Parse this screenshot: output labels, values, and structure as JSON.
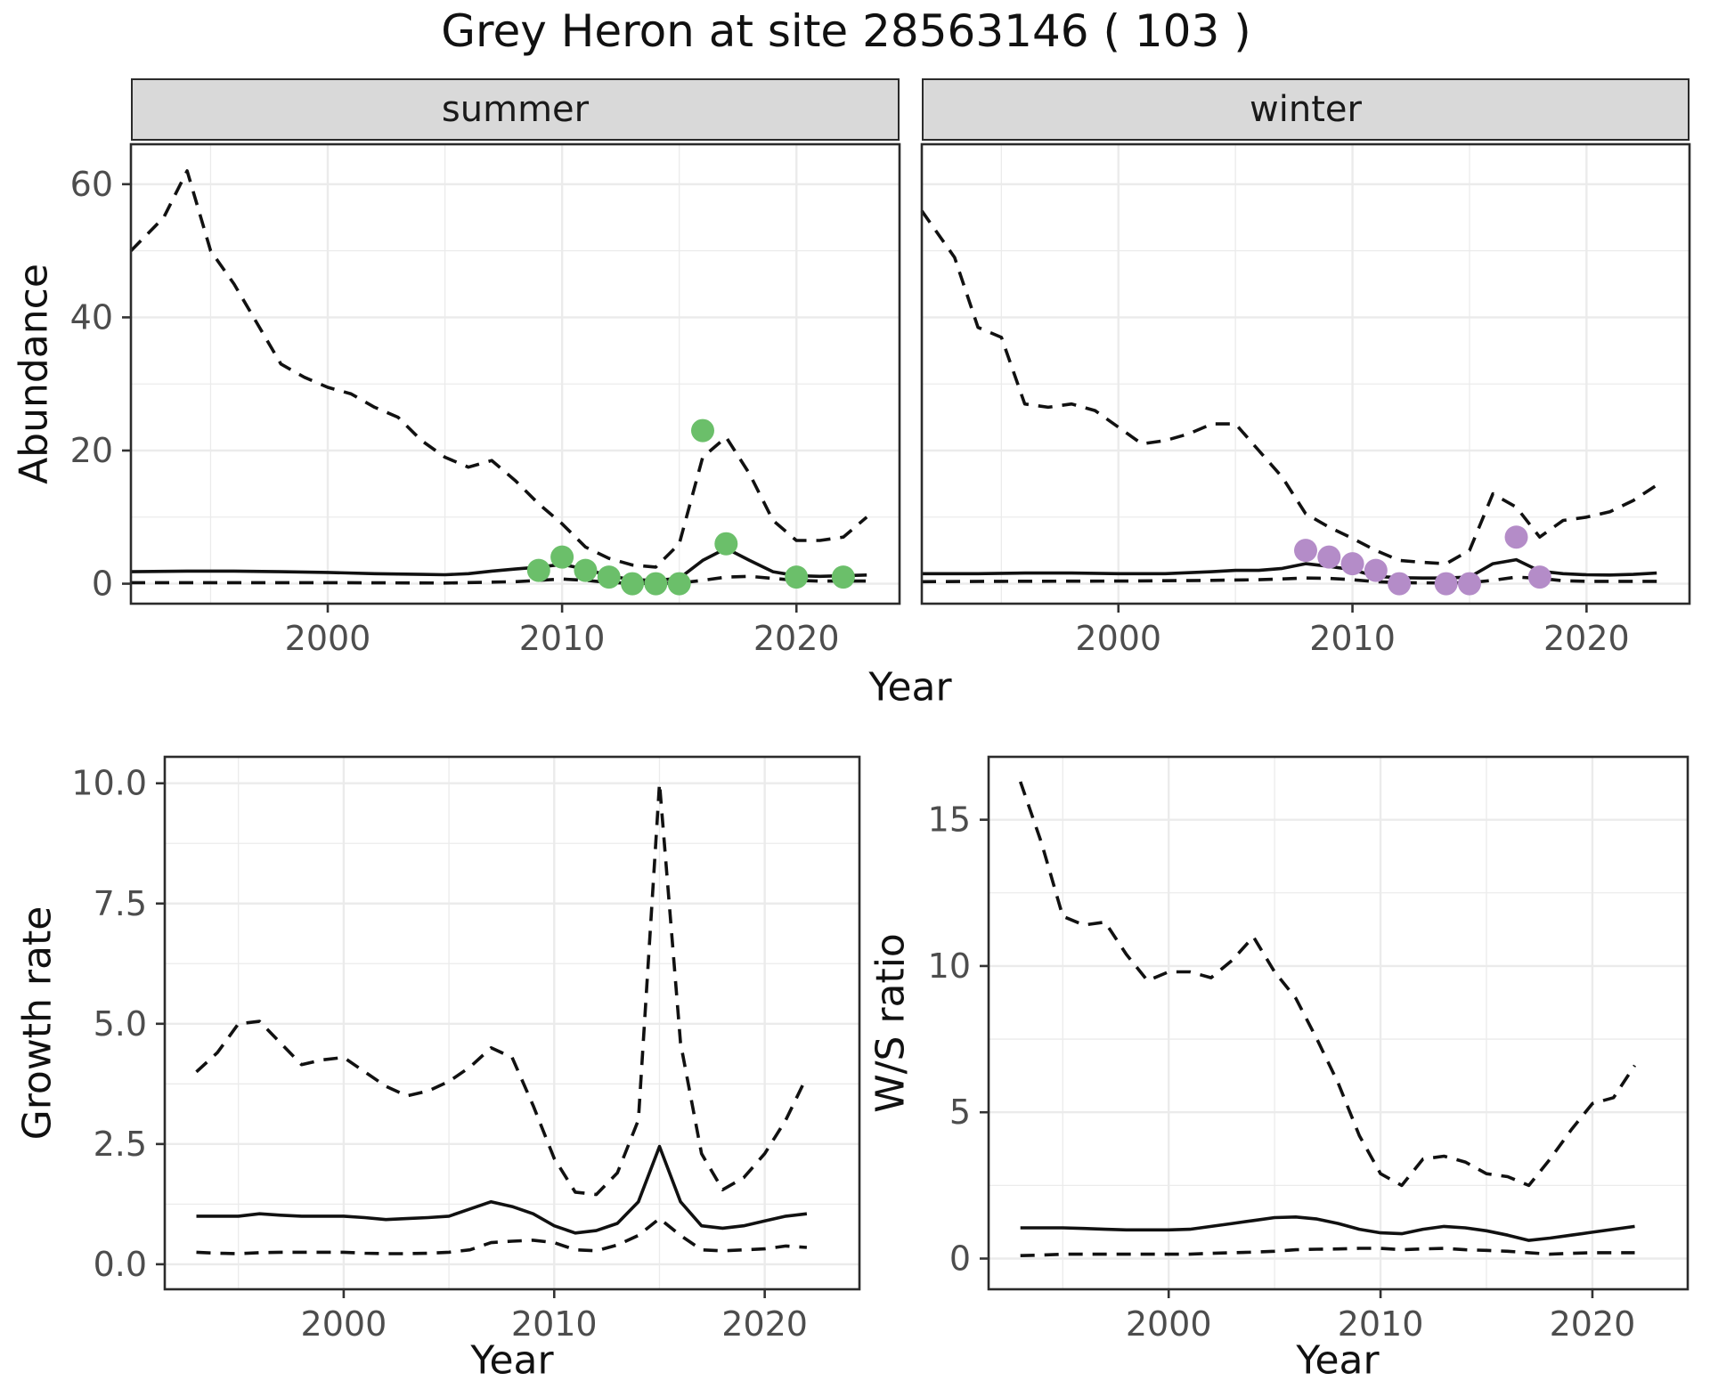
{
  "title": "Grey Heron at site 28563146 ( 103 )",
  "labels": {
    "year": "Year"
  },
  "colors": {
    "summer_points": "#6BBF6A",
    "winter_points": "#B48CC8",
    "line": "#111111",
    "grid": "#EBEBEB",
    "panel_border": "#2B2B2B",
    "strip_bg": "#D9D9D9",
    "axis_text": "#4D4D4D"
  },
  "chart_data": [
    {
      "id": "abundance_summer",
      "type": "line",
      "facet": "summer",
      "xlabel": "Year",
      "ylabel": "Abundance",
      "x_range": [
        1991.6,
        2024.4
      ],
      "y_range": [
        -3,
        66
      ],
      "x_ticks": [
        2000,
        2010,
        2020
      ],
      "x_tick_labels": [
        "2000",
        "2010",
        "2020"
      ],
      "y_ticks": [
        0,
        20,
        40,
        60
      ],
      "y_tick_labels": [
        "0",
        "20",
        "40",
        "60"
      ],
      "show_y_axis": true,
      "grid": true,
      "series": [
        {
          "name": "upper_ci",
          "style": "dashed",
          "x": [
            1991.6,
            1993,
            1994,
            1995,
            1996,
            1997,
            1998,
            1999,
            2000,
            2001,
            2002,
            2003,
            2004,
            2005,
            2006,
            2007,
            2008,
            2009,
            2010,
            2011,
            2012,
            2013,
            2014,
            2015,
            2016,
            2017,
            2018,
            2019,
            2020,
            2021,
            2022,
            2023
          ],
          "y": [
            50,
            55,
            62,
            50,
            45,
            39,
            33,
            31,
            29.5,
            28.5,
            26.5,
            25,
            21.5,
            19,
            17.5,
            18.5,
            15.5,
            12,
            9,
            5.5,
            3.8,
            2.8,
            2.5,
            6,
            19,
            22,
            16.5,
            9.5,
            6.5,
            6.5,
            7,
            10
          ]
        },
        {
          "name": "estimate",
          "style": "solid",
          "x": [
            1991.6,
            1994,
            1996,
            1998,
            2000,
            2002,
            2004,
            2005,
            2006,
            2007,
            2008,
            2009,
            2010,
            2011,
            2012,
            2013,
            2014,
            2015,
            2016,
            2017,
            2018,
            2019,
            2020,
            2021,
            2022,
            2023
          ],
          "y": [
            1.8,
            1.9,
            1.9,
            1.8,
            1.7,
            1.5,
            1.4,
            1.35,
            1.5,
            1.9,
            2.2,
            2.5,
            2.9,
            2.2,
            1.2,
            0.6,
            0.5,
            0.8,
            3.5,
            5.3,
            3.5,
            1.8,
            1.2,
            1.1,
            1.2,
            1.3
          ]
        },
        {
          "name": "lower_ci",
          "style": "dashed",
          "x": [
            1991.6,
            1995,
            2000,
            2005,
            2008,
            2009,
            2010,
            2011,
            2012,
            2013,
            2014,
            2015,
            2016,
            2017,
            2018,
            2019,
            2020,
            2021,
            2022,
            2023
          ],
          "y": [
            0.15,
            0.15,
            0.15,
            0.1,
            0.3,
            0.5,
            0.7,
            0.5,
            0.2,
            0.05,
            0.05,
            0.1,
            0.5,
            1.0,
            1.1,
            0.8,
            0.5,
            0.4,
            0.4,
            0.4
          ]
        }
      ],
      "points": {
        "name": "observed_counts",
        "color": "#6BBF6A",
        "x": [
          2009,
          2010,
          2011,
          2012,
          2013,
          2014,
          2015,
          2016,
          2017,
          2020,
          2022
        ],
        "y": [
          2,
          4,
          2,
          1,
          0,
          0,
          0,
          23,
          6,
          1,
          1
        ]
      }
    },
    {
      "id": "abundance_winter",
      "type": "line",
      "facet": "winter",
      "xlabel": "Year",
      "ylabel": "Abundance",
      "x_range": [
        1991.6,
        2024.4
      ],
      "y_range": [
        -3,
        66
      ],
      "x_ticks": [
        2000,
        2010,
        2020
      ],
      "x_tick_labels": [
        "2000",
        "2010",
        "2020"
      ],
      "y_ticks": [
        0,
        20,
        40,
        60
      ],
      "y_tick_labels": [
        "0",
        "20",
        "40",
        "60"
      ],
      "show_y_axis": false,
      "grid": true,
      "series": [
        {
          "name": "upper_ci",
          "style": "dashed",
          "x": [
            1991.6,
            1993,
            1994,
            1995,
            1996,
            1997,
            1998,
            1999,
            2000,
            2001,
            2002,
            2003,
            2004,
            2005,
            2006,
            2007,
            2008,
            2009,
            2010,
            2011,
            2012,
            2013,
            2014,
            2015,
            2016,
            2017,
            2018,
            2019,
            2020,
            2021,
            2022,
            2023
          ],
          "y": [
            56,
            49,
            38.5,
            37,
            27,
            26.5,
            27,
            26,
            23.5,
            21,
            21.5,
            22.5,
            24,
            24,
            20,
            16,
            10.5,
            8.5,
            6.8,
            5,
            3.5,
            3.2,
            3,
            5,
            13.5,
            11.5,
            7,
            9.5,
            10,
            10.8,
            12.5,
            14.8
          ]
        },
        {
          "name": "estimate",
          "style": "solid",
          "x": [
            1991.6,
            1994,
            1996,
            1998,
            2000,
            2002,
            2004,
            2005,
            2006,
            2007,
            2008,
            2009,
            2010,
            2011,
            2012,
            2013,
            2014,
            2015,
            2016,
            2017,
            2018,
            2019,
            2020,
            2021,
            2022,
            2023
          ],
          "y": [
            1.5,
            1.5,
            1.6,
            1.6,
            1.5,
            1.5,
            1.8,
            2.0,
            2.0,
            2.3,
            3.0,
            2.6,
            2.1,
            1.1,
            0.9,
            0.85,
            0.85,
            1.0,
            3.0,
            3.6,
            1.9,
            1.5,
            1.35,
            1.3,
            1.4,
            1.6
          ]
        },
        {
          "name": "lower_ci",
          "style": "dashed",
          "x": [
            1991.6,
            1995,
            2000,
            2004,
            2006,
            2008,
            2009,
            2010,
            2011,
            2012,
            2014,
            2015,
            2016,
            2017,
            2018,
            2019,
            2020,
            2021,
            2022,
            2023
          ],
          "y": [
            0.3,
            0.35,
            0.4,
            0.5,
            0.6,
            0.85,
            0.8,
            0.6,
            0.3,
            0.15,
            0.1,
            0.15,
            0.5,
            1.0,
            0.8,
            0.45,
            0.35,
            0.35,
            0.35,
            0.35
          ]
        }
      ],
      "points": {
        "name": "observed_counts",
        "color": "#B48CC8",
        "x": [
          2008,
          2009,
          2010,
          2011,
          2012,
          2014,
          2015,
          2017,
          2018
        ],
        "y": [
          5,
          4,
          3,
          2,
          0,
          0,
          0,
          7,
          1
        ]
      }
    },
    {
      "id": "growth_rate",
      "type": "line",
      "facet": null,
      "xlabel": "Year",
      "ylabel": "Growth rate",
      "x_range": [
        1991.5,
        2024.5
      ],
      "y_range": [
        -0.52,
        10.55
      ],
      "x_ticks": [
        2000,
        2010,
        2020
      ],
      "x_tick_labels": [
        "2000",
        "2010",
        "2020"
      ],
      "y_ticks": [
        0,
        2.5,
        5,
        7.5,
        10
      ],
      "y_tick_labels": [
        "0.0",
        "2.5",
        "5.0",
        "7.5",
        "10.0"
      ],
      "show_y_axis": true,
      "grid": true,
      "series": [
        {
          "name": "upper_ci",
          "style": "dashed",
          "x": [
            1993,
            1994,
            1995,
            1996,
            1997,
            1998,
            1999,
            2000,
            2001,
            2002,
            2003,
            2004,
            2005,
            2006,
            2007,
            2008,
            2009,
            2010,
            2011,
            2012,
            2013,
            2014,
            2015,
            2016,
            2017,
            2018,
            2019,
            2020,
            2021,
            2022
          ],
          "y": [
            4.0,
            4.4,
            5.0,
            5.05,
            4.6,
            4.15,
            4.25,
            4.3,
            4.0,
            3.7,
            3.5,
            3.6,
            3.8,
            4.1,
            4.5,
            4.3,
            3.3,
            2.2,
            1.5,
            1.45,
            1.9,
            3.0,
            10.0,
            4.6,
            2.3,
            1.55,
            1.8,
            2.3,
            3.0,
            3.9
          ]
        },
        {
          "name": "estimate",
          "style": "solid",
          "x": [
            1993,
            1994,
            1995,
            1996,
            1997,
            1998,
            1999,
            2000,
            2001,
            2002,
            2003,
            2004,
            2005,
            2006,
            2007,
            2008,
            2009,
            2010,
            2011,
            2012,
            2013,
            2014,
            2015,
            2016,
            2017,
            2018,
            2019,
            2020,
            2021,
            2022
          ],
          "y": [
            1.0,
            1.0,
            1.0,
            1.05,
            1.02,
            1.0,
            1.0,
            1.0,
            0.97,
            0.93,
            0.95,
            0.97,
            1.0,
            1.15,
            1.3,
            1.2,
            1.05,
            0.8,
            0.65,
            0.7,
            0.85,
            1.3,
            2.45,
            1.3,
            0.8,
            0.75,
            0.8,
            0.9,
            1.0,
            1.05
          ]
        },
        {
          "name": "lower_ci",
          "style": "dashed",
          "x": [
            1993,
            1994,
            1995,
            1996,
            1997,
            1998,
            1999,
            2000,
            2001,
            2002,
            2003,
            2004,
            2005,
            2006,
            2007,
            2008,
            2009,
            2010,
            2011,
            2012,
            2013,
            2014,
            2015,
            2016,
            2017,
            2018,
            2019,
            2020,
            2021,
            2022
          ],
          "y": [
            0.25,
            0.23,
            0.22,
            0.24,
            0.25,
            0.25,
            0.25,
            0.25,
            0.23,
            0.22,
            0.22,
            0.23,
            0.25,
            0.3,
            0.45,
            0.48,
            0.5,
            0.45,
            0.3,
            0.28,
            0.4,
            0.6,
            0.95,
            0.6,
            0.3,
            0.28,
            0.3,
            0.32,
            0.38,
            0.35
          ]
        }
      ],
      "points": null
    },
    {
      "id": "ws_ratio",
      "type": "line",
      "facet": null,
      "xlabel": "Year",
      "ylabel": "W/S ratio",
      "x_range": [
        1991.5,
        2024.5
      ],
      "y_range": [
        -1.05,
        17.15
      ],
      "x_ticks": [
        2000,
        2010,
        2020
      ],
      "x_tick_labels": [
        "2000",
        "2010",
        "2020"
      ],
      "y_ticks": [
        0,
        5,
        10,
        15
      ],
      "y_tick_labels": [
        "0",
        "5",
        "10",
        "15"
      ],
      "show_y_axis": true,
      "grid": true,
      "series": [
        {
          "name": "upper_ci",
          "style": "dashed",
          "x": [
            1993,
            1994,
            1995,
            1996,
            1997,
            1998,
            1999,
            2000,
            2001,
            2002,
            2003,
            2004,
            2005,
            2006,
            2007,
            2008,
            2009,
            2010,
            2011,
            2012,
            2013,
            2014,
            2015,
            2016,
            2017,
            2018,
            2019,
            2020,
            2021,
            2022
          ],
          "y": [
            16.3,
            14.2,
            11.7,
            11.4,
            11.5,
            10.4,
            9.5,
            9.8,
            9.8,
            9.6,
            10.2,
            11.0,
            9.8,
            8.9,
            7.5,
            6.0,
            4.2,
            2.9,
            2.5,
            3.4,
            3.5,
            3.3,
            2.9,
            2.8,
            2.5,
            3.4,
            4.4,
            5.3,
            5.5,
            6.6
          ]
        },
        {
          "name": "estimate",
          "style": "solid",
          "x": [
            1993,
            1994,
            1995,
            1996,
            1997,
            1998,
            1999,
            2000,
            2001,
            2002,
            2003,
            2004,
            2005,
            2006,
            2007,
            2008,
            2009,
            2010,
            2011,
            2012,
            2013,
            2014,
            2015,
            2016,
            2017,
            2018,
            2019,
            2020,
            2021,
            2022
          ],
          "y": [
            1.05,
            1.05,
            1.05,
            1.03,
            1.0,
            0.98,
            0.98,
            0.98,
            1.0,
            1.1,
            1.2,
            1.3,
            1.4,
            1.42,
            1.35,
            1.2,
            1.0,
            0.88,
            0.85,
            1.0,
            1.1,
            1.05,
            0.95,
            0.8,
            0.62,
            0.7,
            0.8,
            0.9,
            1.0,
            1.1
          ]
        },
        {
          "name": "lower_ci",
          "style": "dashed",
          "x": [
            1993,
            1994,
            1995,
            1996,
            1997,
            1998,
            1999,
            2000,
            2001,
            2002,
            2003,
            2004,
            2005,
            2006,
            2007,
            2008,
            2009,
            2010,
            2011,
            2012,
            2013,
            2014,
            2015,
            2016,
            2017,
            2018,
            2019,
            2020,
            2021,
            2022
          ],
          "y": [
            0.1,
            0.12,
            0.15,
            0.15,
            0.15,
            0.15,
            0.15,
            0.15,
            0.15,
            0.18,
            0.2,
            0.22,
            0.25,
            0.3,
            0.32,
            0.33,
            0.35,
            0.35,
            0.3,
            0.33,
            0.35,
            0.3,
            0.28,
            0.25,
            0.2,
            0.15,
            0.18,
            0.2,
            0.2,
            0.2
          ]
        }
      ],
      "points": null
    }
  ]
}
